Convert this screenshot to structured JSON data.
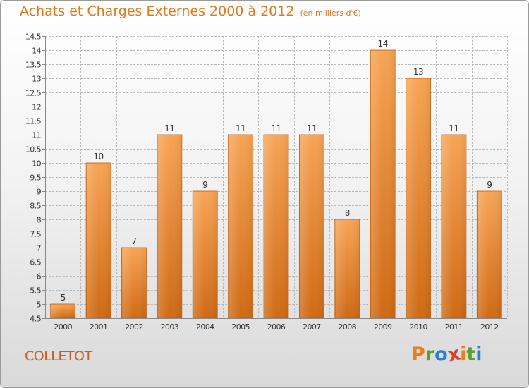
{
  "header": {
    "title": "Achats et Charges Externes 2000 à 2012",
    "unit": "(en milliers d'€)"
  },
  "footer": {
    "commune": "COLLETOT",
    "logo_letters": [
      "P",
      "r",
      "o",
      "x",
      "i",
      "t",
      "i"
    ],
    "logo_colors": [
      "#e8801e",
      "#5aa02c",
      "#2a7fd4",
      "#e23a2a",
      "#e8801e",
      "#5aa02c",
      "#2a7fd4"
    ]
  },
  "colors": {
    "bar_top": "#f7a455",
    "bar_bottom": "#cf6a14",
    "bar_edge": "#c05f10",
    "grid": "#b9b9b9",
    "axis": "#888888"
  },
  "chart_data": {
    "type": "bar",
    "title": "Achats et Charges Externes 2000 à 2012",
    "subtitle": "(en milliers d'€)",
    "categories": [
      "2000",
      "2001",
      "2002",
      "2003",
      "2004",
      "2005",
      "2006",
      "2007",
      "2008",
      "2009",
      "2010",
      "2011",
      "2012"
    ],
    "values": [
      5,
      10,
      7,
      11,
      9,
      11,
      11,
      11,
      8,
      14,
      13,
      11,
      9
    ],
    "value_labels": [
      "5",
      "10",
      "7",
      "11",
      "9",
      "11",
      "11",
      "11",
      "8",
      "14",
      "13",
      "11",
      "9"
    ],
    "ylim": [
      4.5,
      14.5
    ],
    "yticks": [
      4.5,
      5,
      5.5,
      6,
      6.5,
      7,
      7.5,
      8,
      8.5,
      9,
      9.5,
      10,
      10.5,
      11,
      11.5,
      12,
      12.5,
      13,
      13.5,
      14,
      14.5
    ],
    "ytick_labels": [
      "4.5",
      "5",
      "5.5",
      "6",
      "6.5",
      "7",
      "7.5",
      "8",
      "8.5",
      "9",
      "9.5",
      "10",
      "10.5",
      "11",
      "11.5",
      "12",
      "12.5",
      "13",
      "13.5",
      "14",
      "14.5"
    ],
    "grid": true,
    "legend": "none",
    "xlabel": "",
    "ylabel": ""
  }
}
